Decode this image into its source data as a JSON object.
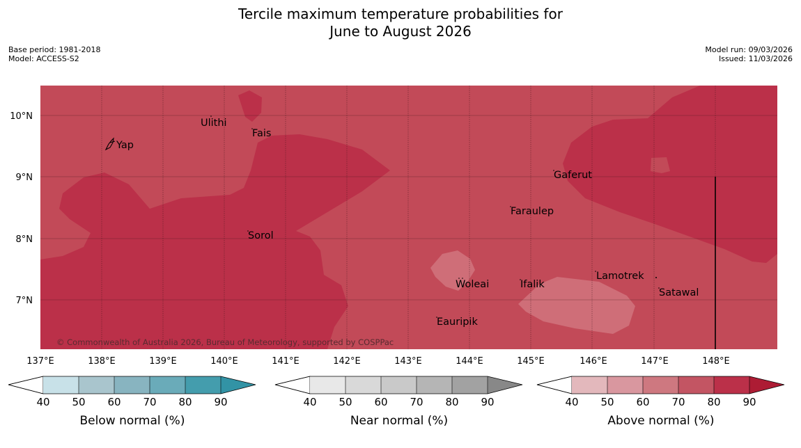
{
  "title": {
    "line1": "Tercile maximum temperature probabilities for",
    "line2": "June to August 2026"
  },
  "meta": {
    "base_period": "Base period: 1981-2018",
    "model": "Model: ACCESS-S2",
    "model_run": "Model run: 09/03/2026",
    "issued": "Issued: 11/03/2026"
  },
  "map": {
    "lat_labels": [
      "10°N",
      "9°N",
      "8°N",
      "7°N"
    ],
    "lon_labels": [
      "137°E",
      "138°E",
      "139°E",
      "140°E",
      "141°E",
      "142°E",
      "143°E",
      "144°E",
      "145°E",
      "146°E",
      "147°E",
      "148°E"
    ],
    "places": {
      "yap": "Yap",
      "ulithi": "Ulithi",
      "fais": "Fais",
      "gaferut": "Gaferut",
      "faraulep": "Faraulep",
      "sorol": "Sorol",
      "lamotrek": "Lamotrek",
      "woleai": "Woleai",
      "ifalik": "Ifalik",
      "satawal": "Satawal",
      "eauripik": "Eauripik"
    },
    "copyright": "© Commonwealth of Australia 2026, Bureau of Meteorology, supported by COSPPac",
    "colors": {
      "above_70_80": "#c24a58",
      "above_80_90": "#bb3049",
      "above_60_70": "#cf6e78"
    }
  },
  "colorbars": {
    "ticks": [
      "40",
      "50",
      "60",
      "70",
      "80",
      "90"
    ],
    "below": {
      "label": "Below normal (%)",
      "colors": [
        "#c8e1e8",
        "#a9c5cd",
        "#88b4c0",
        "#6aabb9",
        "#449dad",
        "#3293a5"
      ]
    },
    "near": {
      "label": "Near normal (%)",
      "colors": [
        "#e8e8e8",
        "#d9d9d9",
        "#c9c9c9",
        "#b5b5b5",
        "#a2a2a2",
        "#888888"
      ]
    },
    "above": {
      "label": "Above normal (%)",
      "colors": [
        "#e3b8bc",
        "#d9979f",
        "#ce7880",
        "#c35563",
        "#bb3049",
        "#ad1c34"
      ]
    }
  }
}
